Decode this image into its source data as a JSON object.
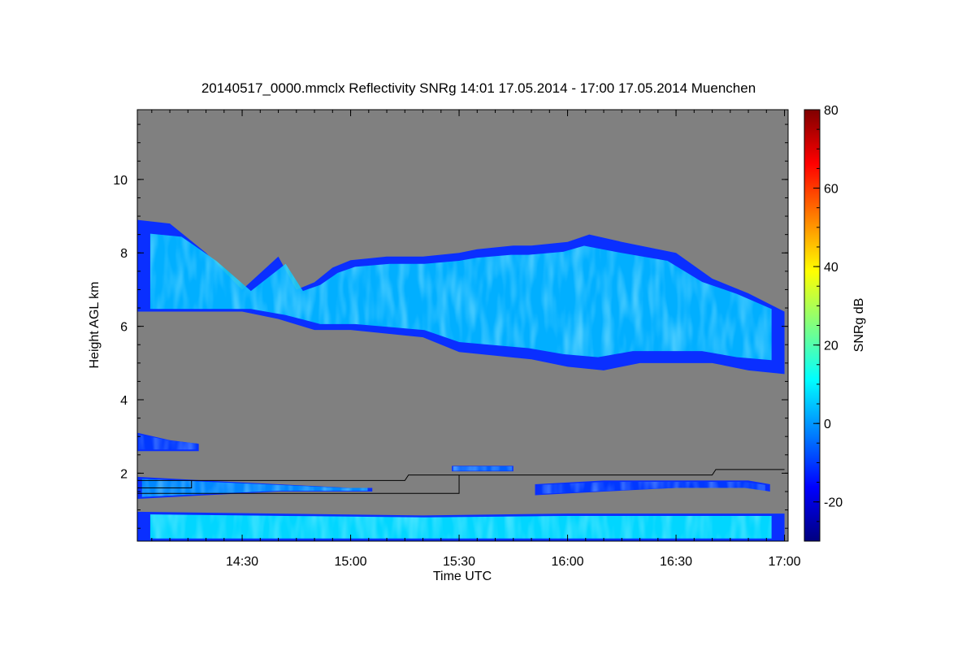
{
  "chart_data": {
    "type": "heatmap",
    "title": "20140517_0000.mmclx Reflectivity SNRg   14:01 17.05.2014 - 17:00 17.05.2014 Muenchen",
    "xlabel": "Time UTC",
    "ylabel": "Height AGL km",
    "x_ticks": [
      "14:30",
      "15:00",
      "15:30",
      "16:00",
      "16:30",
      "17:00"
    ],
    "x_tick_minutes": [
      870,
      900,
      930,
      960,
      990,
      1020
    ],
    "xlim_minutes": [
      841,
      1021
    ],
    "y_ticks": [
      "2",
      "4",
      "6",
      "8",
      "10"
    ],
    "y_tick_values": [
      2,
      4,
      6,
      8,
      10
    ],
    "ylim": [
      0.15,
      11.9
    ],
    "colorbar": {
      "label": "SNRg dB",
      "ticks": [
        "-20",
        "0",
        "20",
        "40",
        "60",
        "80"
      ],
      "tick_values": [
        -20,
        0,
        20,
        40,
        60,
        80
      ],
      "range": [
        -30,
        80
      ],
      "colors": [
        "#00007f",
        "#0000ff",
        "#0080ff",
        "#00ffff",
        "#80ff80",
        "#ffff00",
        "#ff8000",
        "#ff0000",
        "#7f0000"
      ]
    },
    "background_color": "#808080",
    "echo_regions": [
      {
        "name": "upper cloud layer",
        "top": [
          [
            841,
            8.9
          ],
          [
            850,
            8.8
          ],
          [
            855,
            8.4
          ],
          [
            860,
            8.0
          ],
          [
            865,
            7.5
          ],
          [
            870,
            7.0
          ],
          [
            880,
            7.9
          ],
          [
            885,
            7.0
          ],
          [
            890,
            7.2
          ],
          [
            895,
            7.6
          ],
          [
            900,
            7.8
          ],
          [
            910,
            7.9
          ],
          [
            920,
            7.9
          ],
          [
            930,
            8.0
          ],
          [
            935,
            8.1
          ],
          [
            945,
            8.2
          ],
          [
            950,
            8.2
          ],
          [
            960,
            8.3
          ],
          [
            966,
            8.5
          ],
          [
            975,
            8.3
          ],
          [
            990,
            8.0
          ],
          [
            1000,
            7.3
          ],
          [
            1010,
            6.9
          ],
          [
            1020,
            6.4
          ]
        ],
        "bottom": [
          [
            841,
            6.4
          ],
          [
            855,
            6.4
          ],
          [
            870,
            6.4
          ],
          [
            880,
            6.2
          ],
          [
            890,
            5.9
          ],
          [
            900,
            5.9
          ],
          [
            910,
            5.8
          ],
          [
            920,
            5.7
          ],
          [
            930,
            5.3
          ],
          [
            940,
            5.2
          ],
          [
            950,
            5.1
          ],
          [
            960,
            4.9
          ],
          [
            970,
            4.8
          ],
          [
            980,
            5.0
          ],
          [
            990,
            5.0
          ],
          [
            1000,
            5.0
          ],
          [
            1010,
            4.8
          ],
          [
            1020,
            4.7
          ]
        ],
        "snr_db": 5
      },
      {
        "name": "low cloud layer left",
        "top": [
          [
            841,
            1.9
          ],
          [
            860,
            1.8
          ],
          [
            880,
            1.7
          ],
          [
            900,
            1.6
          ],
          [
            906,
            1.6
          ]
        ],
        "bottom": [
          [
            841,
            1.3
          ],
          [
            860,
            1.4
          ],
          [
            880,
            1.5
          ],
          [
            900,
            1.5
          ],
          [
            906,
            1.5
          ]
        ],
        "snr_db": 0
      },
      {
        "name": "low cloud layer right",
        "top": [
          [
            951,
            1.7
          ],
          [
            970,
            1.8
          ],
          [
            990,
            1.8
          ],
          [
            1010,
            1.8
          ],
          [
            1016,
            1.7
          ]
        ],
        "bottom": [
          [
            951,
            1.4
          ],
          [
            970,
            1.5
          ],
          [
            990,
            1.6
          ],
          [
            1010,
            1.6
          ],
          [
            1016,
            1.5
          ]
        ],
        "snr_db": -10
      },
      {
        "name": "isolated echo 15:40",
        "top": [
          [
            928,
            2.2
          ],
          [
            945,
            2.2
          ]
        ],
        "bottom": [
          [
            928,
            2.05
          ],
          [
            945,
            2.05
          ]
        ],
        "snr_db": -5
      },
      {
        "name": "echo near 2.6 km",
        "top": [
          [
            841,
            3.1
          ],
          [
            850,
            2.9
          ],
          [
            858,
            2.8
          ]
        ],
        "bottom": [
          [
            841,
            2.6
          ],
          [
            850,
            2.6
          ],
          [
            858,
            2.6
          ]
        ],
        "snr_db": -10
      },
      {
        "name": "boundary layer clutter",
        "top": [
          [
            841,
            0.95
          ],
          [
            880,
            0.9
          ],
          [
            920,
            0.85
          ],
          [
            960,
            0.9
          ],
          [
            1000,
            0.9
          ],
          [
            1020,
            0.9
          ]
        ],
        "bottom": [
          [
            841,
            0.15
          ],
          [
            1020,
            0.15
          ]
        ],
        "snr_db": 10
      }
    ],
    "overlay_lines": [
      [
        [
          841,
          1.8
        ],
        [
          915,
          1.8
        ],
        [
          916,
          1.95
        ],
        [
          1000,
          1.95
        ],
        [
          1001,
          2.1
        ],
        [
          1020,
          2.1
        ]
      ],
      [
        [
          841,
          1.6
        ],
        [
          856,
          1.6
        ],
        [
          856,
          1.8
        ]
      ],
      [
        [
          841,
          1.45
        ],
        [
          930,
          1.45
        ],
        [
          930,
          1.95
        ]
      ]
    ]
  }
}
